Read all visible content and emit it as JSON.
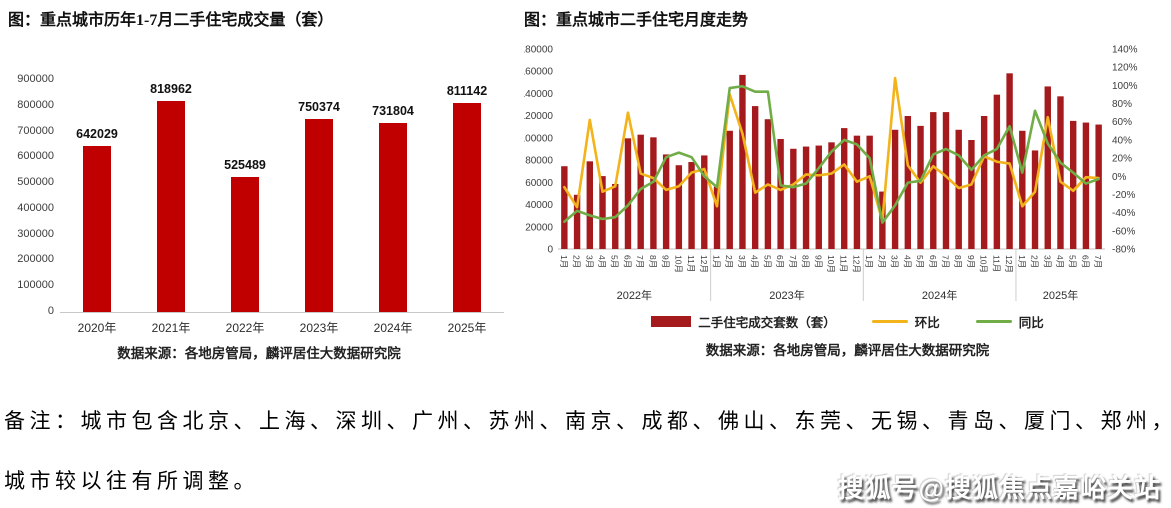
{
  "note": {
    "line1": "备注：城市包含北京、上海、深圳、广州、苏州、南京、成都、佛山、东莞、无锡、青岛、厦门、郑州，",
    "line2": "城市较以往有所调整。"
  },
  "watermark": "搜狐号@搜狐焦点嘉峪关站",
  "chart_data": [
    {
      "type": "bar",
      "title": "图：重点城市历年1-7月二手住宅成交量（套）",
      "categories": [
        "2020年",
        "2021年",
        "2022年",
        "2023年",
        "2024年",
        "2025年"
      ],
      "values": [
        642029,
        818962,
        525489,
        750374,
        731804,
        811142
      ],
      "data_labels": [
        "642029",
        "818962",
        "525489",
        "750374",
        "731804",
        "811142"
      ],
      "ylim": [
        0,
        900000
      ],
      "ytick_step": 100000,
      "grid": false,
      "bar_color": "#c00000",
      "source": "数据来源：各地房管局，麟评居住大数据研究院"
    },
    {
      "type": "bar+line",
      "title": "图：重点城市二手住宅月度走势",
      "year_groups": [
        {
          "label": "2022年",
          "months": 12
        },
        {
          "label": "2023年",
          "months": 12
        },
        {
          "label": "2024年",
          "months": 12
        },
        {
          "label": "2025年",
          "months": 7
        }
      ],
      "month_labels": [
        "1月",
        "2月",
        "3月",
        "4月",
        "5月",
        "6月",
        "7月",
        "8月",
        "9月",
        "10月",
        "11月",
        "12月",
        "1月",
        "2月",
        "3月",
        "4月",
        "5月",
        "6月",
        "7月",
        "8月",
        "9月",
        "10月",
        "11月",
        "12月",
        "1月",
        "2月",
        "3月",
        "4月",
        "5月",
        "6月",
        "7月",
        "8月",
        "9月",
        "10月",
        "11月",
        "12月",
        "1月",
        "2月",
        "3月",
        "4月",
        "5月",
        "6月",
        "7月"
      ],
      "left_axis": {
        "min": 0,
        "max": 180000,
        "step": 20000
      },
      "right_axis": {
        "min": -80,
        "max": 140,
        "step": 20,
        "unit": "%"
      },
      "grid": false,
      "legend_position": "bottom",
      "series": [
        {
          "name": "二手住宅成交套数（套）",
          "type": "bar",
          "axis": "left",
          "color": "#a51a1d",
          "values": [
            74500,
            48800,
            78900,
            65600,
            58500,
            99600,
            102900,
            100500,
            85100,
            75400,
            78300,
            84200,
            56100,
            106400,
            156700,
            128600,
            116800,
            99000,
            90200,
            92200,
            93100,
            96000,
            108800,
            102000,
            102000,
            51700,
            107300,
            119700,
            110800,
            123200,
            123200,
            107300,
            98100,
            119700,
            138900,
            158100,
            106400,
            88700,
            146300,
            137400,
            115300,
            113800,
            112000
          ]
        },
        {
          "name": "环比",
          "type": "line",
          "axis": "right",
          "color": "#f2b31b",
          "values": [
            -12,
            -34,
            62,
            -17,
            -11,
            70,
            3,
            -2,
            -15,
            -11,
            4,
            8,
            -33,
            90,
            47,
            -18,
            -9,
            -15,
            -9,
            2,
            1,
            3,
            13,
            -6,
            0,
            -49,
            108,
            12,
            -7,
            11,
            0,
            -13,
            -9,
            22,
            16,
            14,
            -33,
            -17,
            65,
            -6,
            -16,
            -1,
            -2
          ]
        },
        {
          "name": "同比",
          "type": "line",
          "axis": "right",
          "color": "#70ad47",
          "values": [
            -50,
            -38,
            -43,
            -47,
            -45,
            -32,
            -14,
            -6,
            21,
            26,
            21,
            0,
            -12,
            97,
            99,
            93,
            93,
            -10,
            -12,
            -8,
            9,
            27,
            40,
            35,
            20,
            -51,
            -32,
            -7,
            -5,
            24,
            30,
            23,
            7,
            23,
            30,
            55,
            4,
            72,
            36,
            15,
            4,
            -8,
            -3
          ]
        }
      ],
      "source": "数据来源：各地房管局，麟评居住大数据研究院"
    }
  ]
}
